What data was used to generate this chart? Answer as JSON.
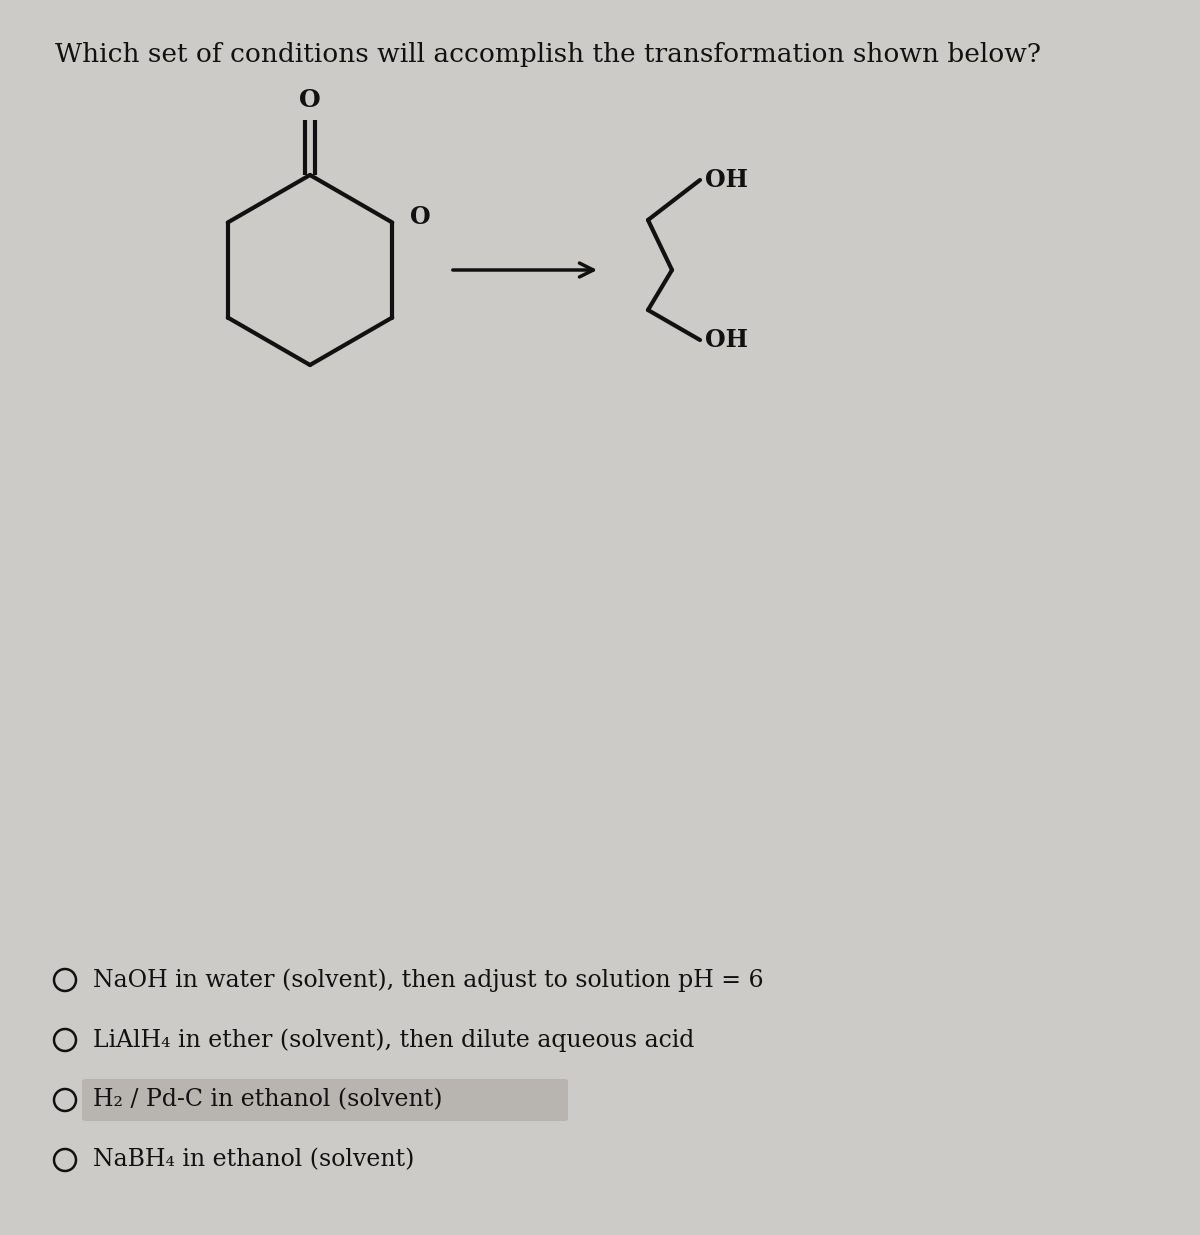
{
  "title": "Which set of conditions will accomplish the transformation shown below?",
  "title_fontsize": 19,
  "bg_color": "#cccbc8",
  "text_color": "#111111",
  "options": [
    {
      "text": "NaOH in water (solvent), then adjust to solution pH = 6",
      "highlight": false
    },
    {
      "text": "LiAlH₄ in ether (solvent), then dilute aqueous acid",
      "highlight": false
    },
    {
      "text": "H₂ / Pd-C in ethanol (solvent)",
      "highlight": true
    },
    {
      "text": "NaBH₄ in ethanol (solvent)",
      "highlight": false
    }
  ],
  "option_fontsize": 17,
  "lw": 3.0,
  "col": "#111111"
}
